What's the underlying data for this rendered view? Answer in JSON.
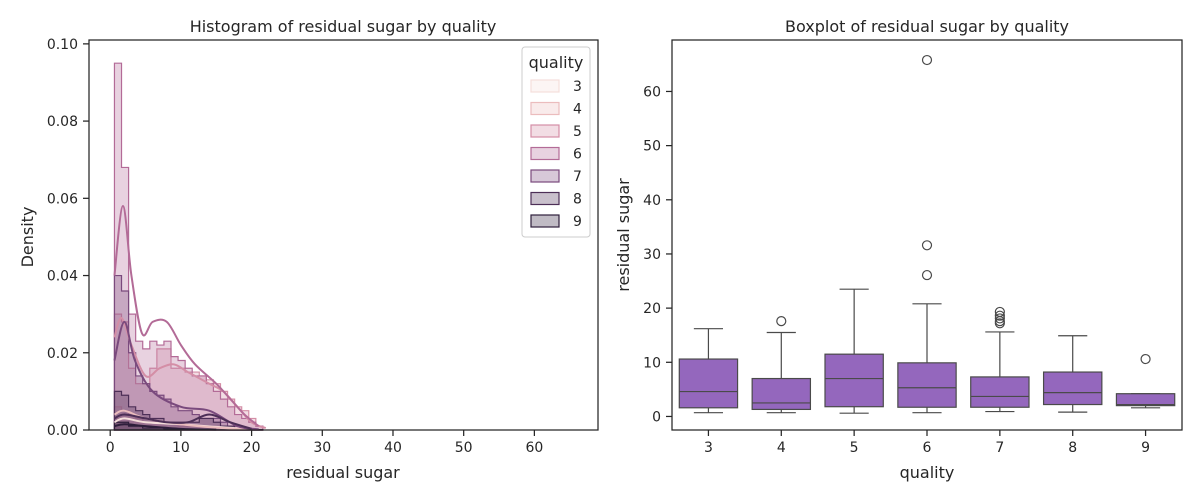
{
  "chart_data": [
    {
      "type": "histogram",
      "title": "Histogram of residual sugar by quality",
      "xlabel": "residual sugar",
      "ylabel": "Density",
      "xlim": [
        -3,
        69
      ],
      "ylim": [
        0,
        0.101
      ],
      "x_ticks": [
        0,
        10,
        20,
        30,
        40,
        50,
        60
      ],
      "y_ticks": [
        0.0,
        0.02,
        0.04,
        0.06,
        0.08,
        0.1
      ],
      "y_tick_labels": [
        "0.00",
        "0.02",
        "0.04",
        "0.06",
        "0.08",
        "0.10"
      ],
      "grid": false,
      "legend": {
        "title": "quality",
        "placement": "top-right"
      },
      "bin_edges": [
        0.6,
        1.6,
        2.6,
        3.6,
        4.6,
        5.6,
        6.6,
        7.6,
        8.6,
        9.6,
        10.6,
        11.6,
        12.6,
        13.6,
        14.6,
        15.6,
        16.6,
        17.6,
        18.6,
        19.6,
        20.6,
        21.6
      ],
      "series": [
        {
          "name": "3",
          "color": "#f5dedb",
          "densities": [
            0.003,
            0.004,
            0.003,
            0.002,
            0.002,
            0.002,
            0.002,
            0.002,
            0.002,
            0.001,
            0.001,
            0.001,
            0.001,
            0.001,
            0.001,
            0.0005,
            0.0005,
            0.0003,
            0.0002,
            0.0001,
            0.0001
          ],
          "kde": [
            [
              0.6,
              0.002
            ],
            [
              2,
              0.003
            ],
            [
              5,
              0.002
            ],
            [
              10,
              0.0015
            ],
            [
              15,
              0.0008
            ],
            [
              20,
              0.0002
            ]
          ]
        },
        {
          "name": "4",
          "color": "#ebbcbd",
          "densities": [
            0.006,
            0.005,
            0.004,
            0.003,
            0.002,
            0.002,
            0.002,
            0.0015,
            0.0015,
            0.001,
            0.001,
            0.001,
            0.0008,
            0.0008,
            0.0005,
            0.0005,
            0.0003,
            0.0002,
            0.0001,
            0.0001,
            0.0001
          ],
          "kde": [
            [
              0.6,
              0.004
            ],
            [
              2,
              0.005
            ],
            [
              5,
              0.003
            ],
            [
              10,
              0.0015
            ],
            [
              15,
              0.0006
            ],
            [
              20,
              0.0001
            ]
          ]
        },
        {
          "name": "5",
          "color": "#d48ea6",
          "densities": [
            0.03,
            0.028,
            0.016,
            0.012,
            0.012,
            0.016,
            0.021,
            0.021,
            0.016,
            0.016,
            0.015,
            0.015,
            0.014,
            0.013,
            0.012,
            0.01,
            0.008,
            0.006,
            0.005,
            0.003,
            0.001
          ],
          "kde": [
            [
              0.6,
              0.024
            ],
            [
              1.6,
              0.029
            ],
            [
              3,
              0.022
            ],
            [
              5,
              0.014
            ],
            [
              7,
              0.016
            ],
            [
              9,
              0.017
            ],
            [
              11,
              0.015
            ],
            [
              14,
              0.012
            ],
            [
              16,
              0.01
            ],
            [
              18,
              0.006
            ],
            [
              20,
              0.002
            ],
            [
              22,
              0.0005
            ]
          ]
        },
        {
          "name": "6",
          "color": "#b36b97",
          "densities": [
            0.095,
            0.068,
            0.03,
            0.023,
            0.021,
            0.023,
            0.022,
            0.023,
            0.019,
            0.018,
            0.016,
            0.014,
            0.014,
            0.012,
            0.01,
            0.008,
            0.006,
            0.004,
            0.003,
            0.002,
            0.001
          ],
          "kde": [
            [
              0.6,
              0.04
            ],
            [
              1.8,
              0.058
            ],
            [
              3,
              0.04
            ],
            [
              4.5,
              0.025
            ],
            [
              6,
              0.028
            ],
            [
              8,
              0.028
            ],
            [
              10,
              0.022
            ],
            [
              12,
              0.017
            ],
            [
              15,
              0.012
            ],
            [
              17,
              0.008
            ],
            [
              19,
              0.004
            ],
            [
              21,
              0.001
            ]
          ]
        },
        {
          "name": "7",
          "color": "#7a4a7d",
          "densities": [
            0.04,
            0.036,
            0.02,
            0.014,
            0.012,
            0.01,
            0.009,
            0.008,
            0.006,
            0.005,
            0.005,
            0.004,
            0.003,
            0.003,
            0.003,
            0.002,
            0.001,
            0.001,
            0.0005,
            0.0003,
            0.0001
          ],
          "kde": [
            [
              0.6,
              0.018
            ],
            [
              2,
              0.028
            ],
            [
              3.5,
              0.018
            ],
            [
              6,
              0.01
            ],
            [
              10,
              0.006
            ],
            [
              14,
              0.005
            ],
            [
              18,
              0.001
            ],
            [
              21,
              0.0002
            ]
          ]
        },
        {
          "name": "8",
          "color": "#4d2f57",
          "densities": [
            0.01,
            0.009,
            0.006,
            0.005,
            0.004,
            0.003,
            0.003,
            0.002,
            0.002,
            0.002,
            0.002,
            0.002,
            0.003,
            0.003,
            0.002,
            0.001,
            0.001,
            0.0005,
            0.0002,
            0.0001,
            0.0001
          ],
          "kde": [
            [
              0.6,
              0.003
            ],
            [
              2,
              0.004
            ],
            [
              5,
              0.003
            ],
            [
              8,
              0.002
            ],
            [
              11,
              0.002
            ],
            [
              14,
              0.004
            ],
            [
              17,
              0.002
            ],
            [
              20,
              0.0003
            ]
          ]
        },
        {
          "name": "9",
          "color": "#2e1e3b",
          "densities": [
            0.002,
            0.002,
            0.001,
            0.001,
            0.0005,
            0.0005,
            0.0005,
            0.0002,
            0.0002,
            0.0002,
            0.0002,
            0,
            0,
            0,
            0,
            0,
            0,
            0,
            0,
            0,
            0
          ],
          "kde": [
            [
              0.6,
              0.001
            ],
            [
              2,
              0.0015
            ],
            [
              5,
              0.001
            ],
            [
              10,
              0.0003
            ],
            [
              15,
              0.0001
            ]
          ]
        }
      ]
    },
    {
      "type": "boxplot",
      "title": "Boxplot of residual sugar by quality",
      "xlabel": "quality",
      "ylabel": "residual sugar",
      "categories": [
        "3",
        "4",
        "5",
        "6",
        "7",
        "8",
        "9"
      ],
      "ylim": [
        -2.5,
        69.5
      ],
      "y_ticks": [
        0,
        10,
        20,
        30,
        40,
        50,
        60
      ],
      "grid": false,
      "box_color": "#9467bd",
      "boxes": [
        {
          "category": "3",
          "whisker_low": 0.7,
          "q1": 1.6,
          "median": 4.6,
          "q3": 10.6,
          "whisker_high": 16.2,
          "outliers": []
        },
        {
          "category": "4",
          "whisker_low": 0.7,
          "q1": 1.3,
          "median": 2.5,
          "q3": 7.0,
          "whisker_high": 15.5,
          "outliers": [
            17.6
          ]
        },
        {
          "category": "5",
          "whisker_low": 0.6,
          "q1": 1.8,
          "median": 7.0,
          "q3": 11.5,
          "whisker_high": 23.5,
          "outliers": []
        },
        {
          "category": "6",
          "whisker_low": 0.7,
          "q1": 1.7,
          "median": 5.3,
          "q3": 9.9,
          "whisker_high": 20.8,
          "outliers": [
            26.1,
            31.6,
            65.8
          ]
        },
        {
          "category": "7",
          "whisker_low": 0.9,
          "q1": 1.7,
          "median": 3.7,
          "q3": 7.3,
          "whisker_high": 15.6,
          "outliers": [
            17.2,
            17.6,
            18.1,
            18.6,
            19.3
          ]
        },
        {
          "category": "8",
          "whisker_low": 0.8,
          "q1": 2.2,
          "median": 4.4,
          "q3": 8.2,
          "whisker_high": 14.9,
          "outliers": []
        },
        {
          "category": "9",
          "whisker_low": 1.6,
          "q1": 2.0,
          "median": 2.2,
          "q3": 4.2,
          "whisker_high": 4.2,
          "outliers": [
            10.6
          ]
        }
      ]
    }
  ]
}
